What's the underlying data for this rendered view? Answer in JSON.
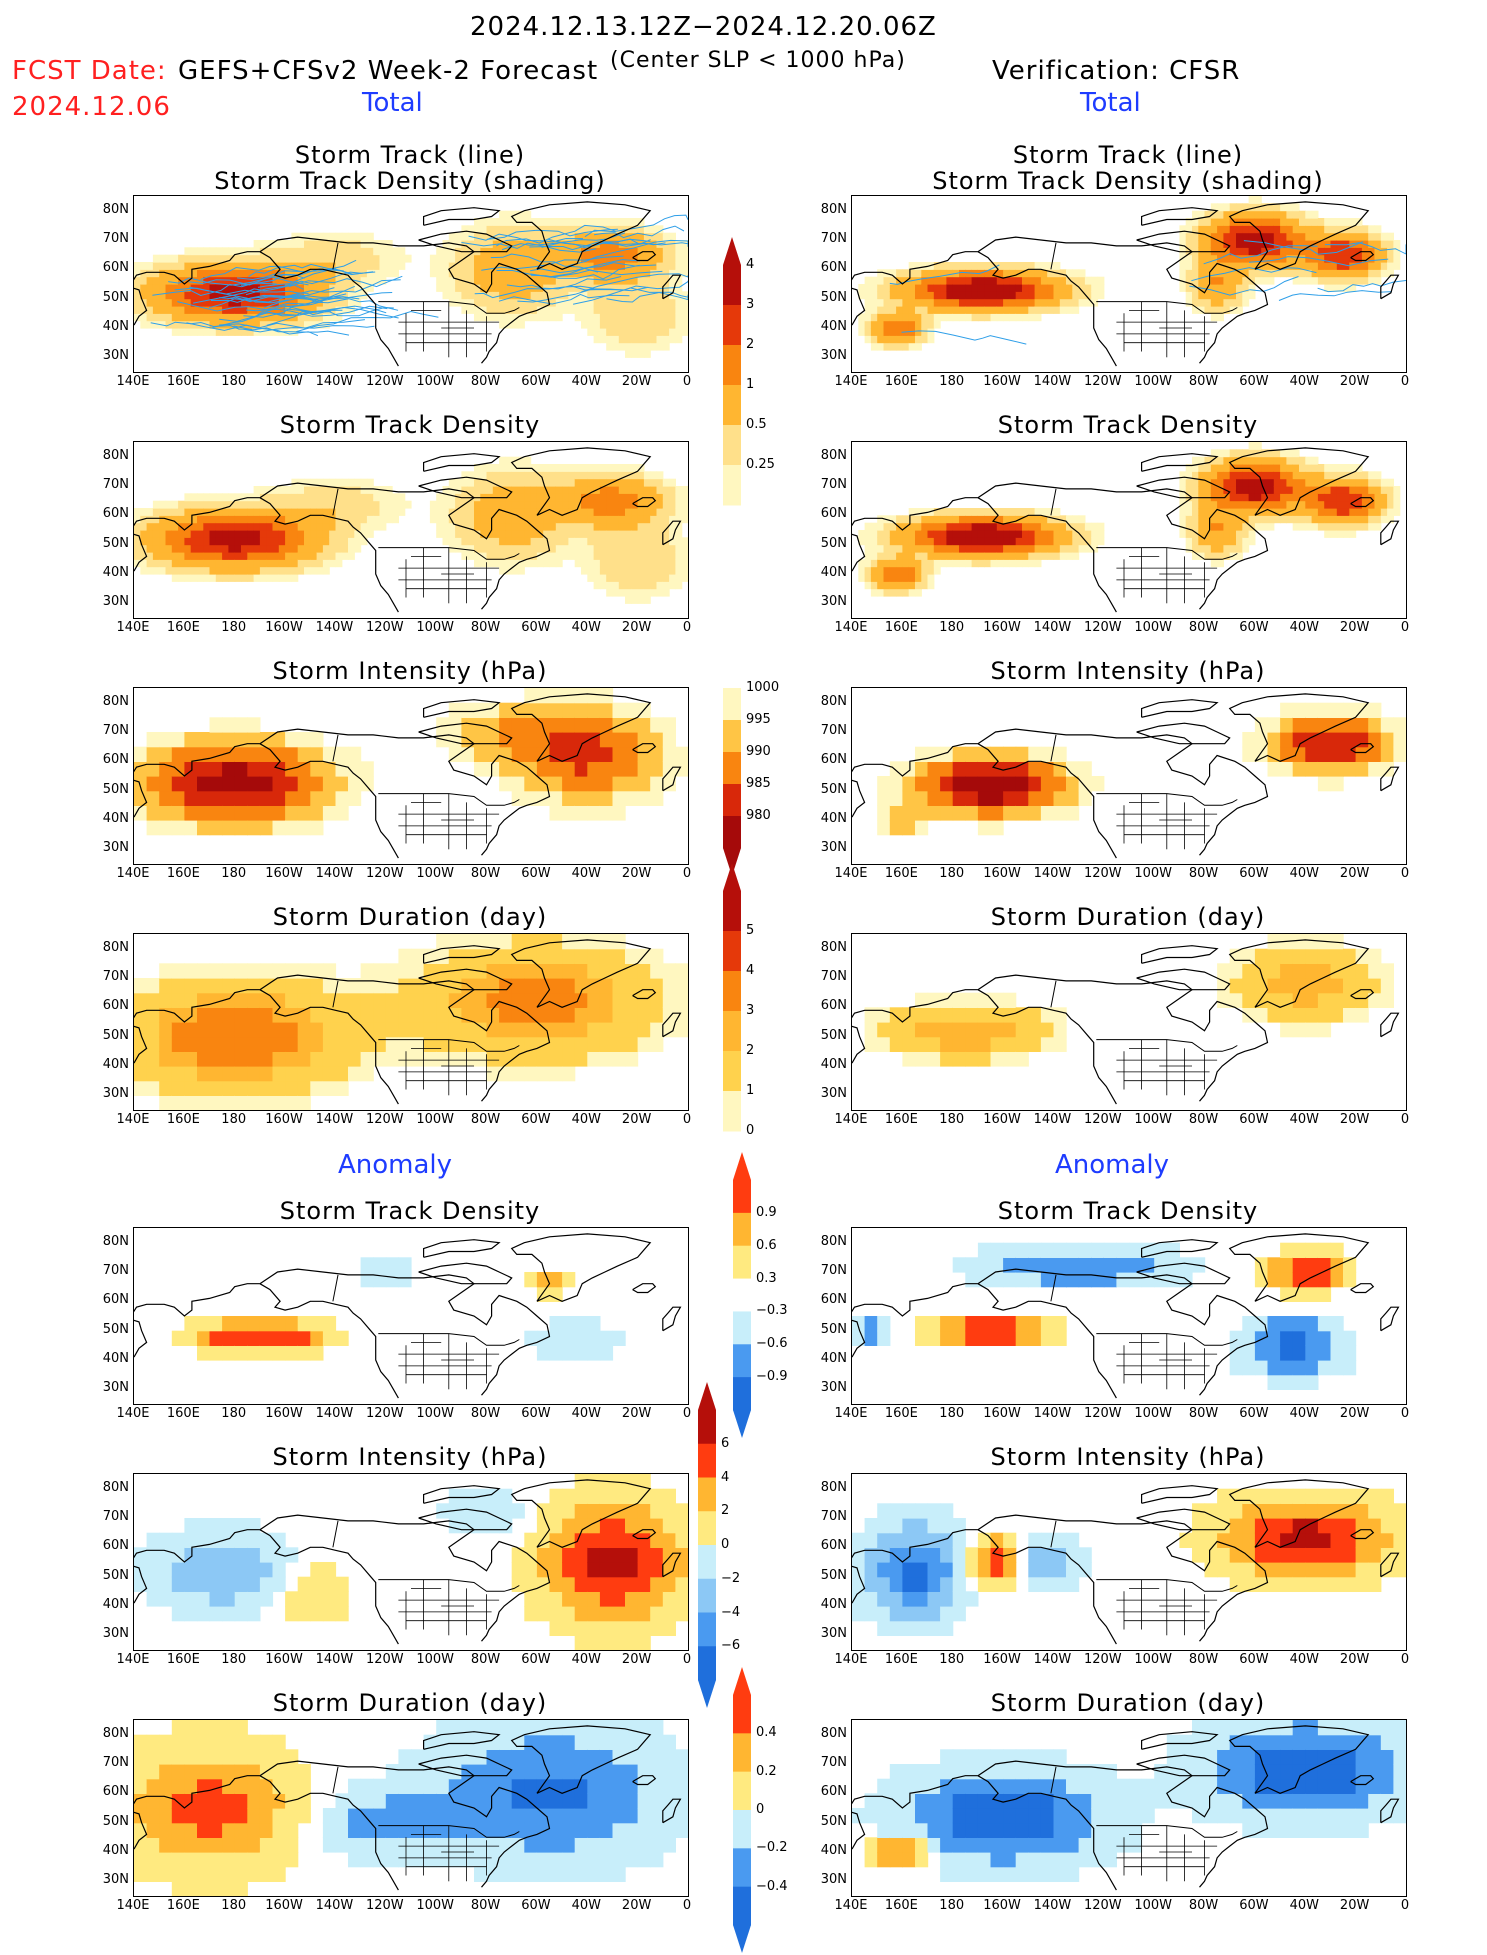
{
  "header": {
    "date_range": "2024.12.13.12Z−2024.12.20.06Z",
    "fcst_date_label": "FCST Date:",
    "fcst_date": "2024.12.06",
    "forecast_title": "GEFS+CFSv2 Week-2 Forecast",
    "criterion": "(Center SLP < 1000 hPa)",
    "verification": "Verification: CFSR"
  },
  "sections": {
    "total": "Total",
    "anomaly": "Anomaly"
  },
  "panel_titles": {
    "track_line": "Storm Track (line)",
    "track_shading": "Storm Track Density (shading)",
    "density": "Storm Track Density",
    "intensity": "Storm Intensity (hPa)",
    "duration": "Storm Duration (day)"
  },
  "axes": {
    "lat_labels": [
      "80N",
      "70N",
      "60N",
      "50N",
      "40N",
      "30N"
    ],
    "lon_labels": [
      "140E",
      "160E",
      "180",
      "160W",
      "140W",
      "120W",
      "100W",
      "80W",
      "60W",
      "40W",
      "20W",
      "0"
    ]
  },
  "colorbars": {
    "density_total": {
      "labels": [
        "0.25",
        "0.5",
        "1",
        "2",
        "3",
        "4"
      ],
      "colors": [
        "#fff7c0",
        "#ffe08a",
        "#ffb631",
        "#f98510",
        "#e5390a",
        "#b50f0a"
      ]
    },
    "intensity_total": {
      "labels": [
        "1000",
        "995",
        "990",
        "985",
        "980"
      ],
      "colors": [
        "#fff7c0",
        "#ffc545",
        "#f98510",
        "#d8280a",
        "#a50a0a"
      ]
    },
    "duration_total": {
      "labels": [
        "0",
        "1",
        "2",
        "3",
        "4",
        "5"
      ],
      "colors": [
        "#fff7c0",
        "#ffd24d",
        "#ffb631",
        "#f98510",
        "#e5390a",
        "#b50f0a"
      ]
    },
    "density_anom": {
      "labels": [
        "−0.9",
        "−0.6",
        "−0.3",
        "0.3",
        "0.6",
        "0.9"
      ],
      "colors": [
        "#1f6fdc",
        "#4a9af0",
        "#c8eefa",
        "#ffffff",
        "#ffea80",
        "#ffb631",
        "#ff3c10"
      ]
    },
    "intensity_anom": {
      "labels": [
        "−6",
        "−4",
        "−2",
        "0",
        "2",
        "4",
        "6"
      ],
      "colors": [
        "#1f6fdc",
        "#4a9af0",
        "#8cc8f5",
        "#c8eefa",
        "#ffea80",
        "#ffb631",
        "#ff3c10",
        "#b50f0a"
      ]
    },
    "duration_anom": {
      "labels": [
        "−0.4",
        "−0.2",
        "0",
        "0.2",
        "0.4"
      ],
      "colors": [
        "#1f6fdc",
        "#4a9af0",
        "#c8eefa",
        "#ffea80",
        "#ffb631",
        "#ff3c10"
      ]
    }
  },
  "panels": [
    {
      "id": "fc-track",
      "title_keys": [
        "track_line",
        "track_shading"
      ],
      "shade": "dens_fc",
      "tracks": true
    },
    {
      "id": "ob-track",
      "title_keys": [
        "track_line",
        "track_shading"
      ],
      "shade": "dens_ob",
      "tracks": true
    },
    {
      "id": "fc-density",
      "title_keys": [
        "density"
      ],
      "shade": "dens_fc"
    },
    {
      "id": "ob-density",
      "title_keys": [
        "density"
      ],
      "shade": "dens_ob"
    },
    {
      "id": "fc-intensity",
      "title_keys": [
        "intensity"
      ],
      "shade": "int_fc"
    },
    {
      "id": "ob-intensity",
      "title_keys": [
        "intensity"
      ],
      "shade": "int_ob"
    },
    {
      "id": "fc-duration",
      "title_keys": [
        "duration"
      ],
      "shade": "dur_fc"
    },
    {
      "id": "ob-duration",
      "title_keys": [
        "duration"
      ],
      "shade": "dur_ob"
    },
    {
      "id": "fc-density-anom",
      "title_keys": [
        "density"
      ],
      "shade": "adens_fc"
    },
    {
      "id": "ob-density-anom",
      "title_keys": [
        "density"
      ],
      "shade": "adens_ob"
    },
    {
      "id": "fc-intensity-anom",
      "title_keys": [
        "intensity"
      ],
      "shade": "aint_fc"
    },
    {
      "id": "ob-intensity-anom",
      "title_keys": [
        "intensity"
      ],
      "shade": "aint_ob"
    },
    {
      "id": "fc-duration-anom",
      "title_keys": [
        "duration"
      ],
      "shade": "adur_fc"
    },
    {
      "id": "ob-duration-anom",
      "title_keys": [
        "duration"
      ],
      "shade": "adur_ob"
    }
  ]
}
